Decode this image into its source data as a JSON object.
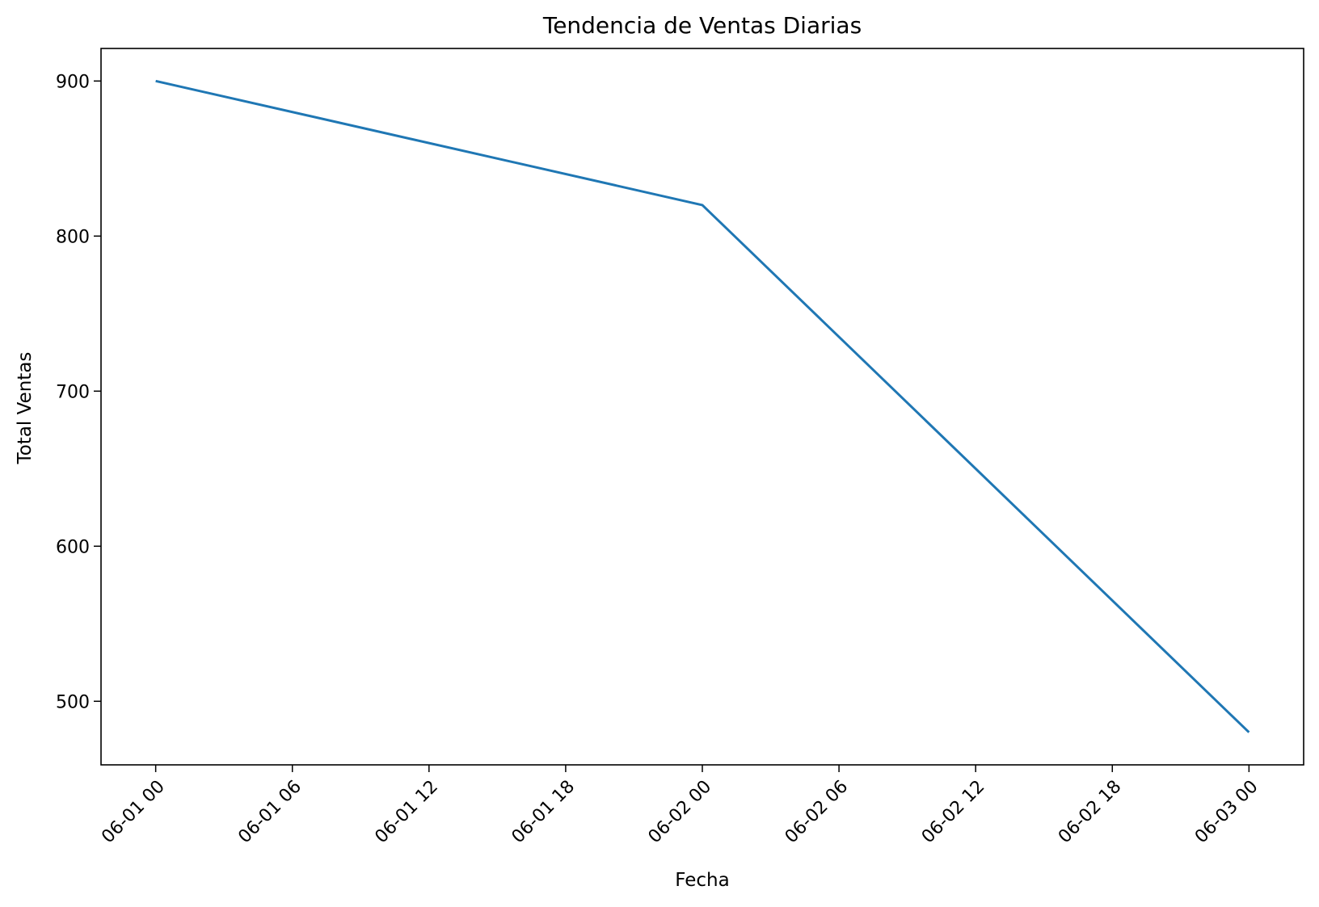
{
  "chart_data": {
    "type": "line",
    "title": "Tendencia de Ventas Diarias",
    "xlabel": "Fecha",
    "ylabel": "Total Ventas",
    "x": [
      "2024-06-01 00:00",
      "2024-06-02 00:00",
      "2024-06-03 00:00"
    ],
    "series": [
      {
        "values": [
          900,
          820,
          480
        ],
        "color": "#1f77b4"
      }
    ],
    "xticks": [
      "06-01 00",
      "06-01 06",
      "06-01 12",
      "06-01 18",
      "06-02 00",
      "06-02 06",
      "06-02 12",
      "06-02 18",
      "06-03 00"
    ],
    "xlim": [
      "2024-05-31 21:36",
      "2024-06-03 02:24"
    ],
    "yticks": [
      500,
      600,
      700,
      800,
      900
    ],
    "ylim": [
      459,
      921
    ],
    "grid": false,
    "legend": false
  }
}
